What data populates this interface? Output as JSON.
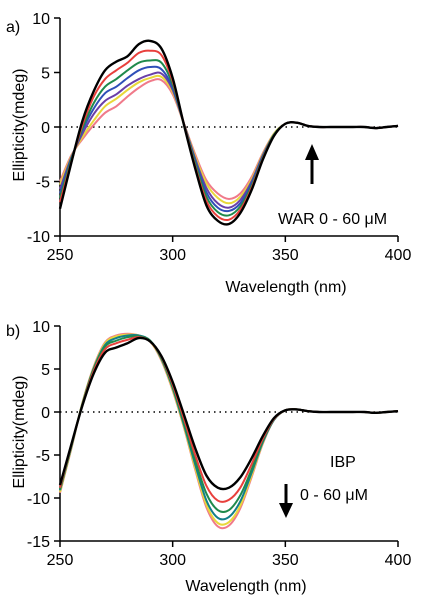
{
  "colors": {
    "black": "#000000",
    "red": "#e8403c",
    "green": "#1f8a4c",
    "teal": "#127f8a",
    "blue": "#2f4fb8",
    "purple": "#6a3fa8",
    "yellow": "#e8d83a",
    "pink": "#f07a8a"
  },
  "chart_data": [
    {
      "type": "line",
      "panel_label": "a)",
      "title": "",
      "xlabel": "Wavelength (nm)",
      "ylabel": "Ellipticity(mdeg)",
      "xlim": [
        250,
        400
      ],
      "ylim": [
        -10,
        10
      ],
      "xticks": [
        250,
        300,
        350,
        400
      ],
      "yticks": [
        10,
        5,
        0,
        -5,
        -10
      ],
      "zero_line": "dotted",
      "annotation": {
        "text": "WAR 0 - 60 μM",
        "arrow": "up"
      },
      "x": [
        250,
        255,
        260,
        265,
        270,
        275,
        280,
        285,
        290,
        295,
        300,
        305,
        310,
        315,
        320,
        325,
        330,
        335,
        340,
        345,
        350,
        355,
        360,
        365,
        370,
        375,
        380,
        385,
        390,
        395,
        400
      ],
      "series": [
        {
          "color": "black",
          "values": [
            -7.5,
            -3.3,
            0.6,
            3.3,
            5.2,
            6.0,
            6.5,
            7.6,
            7.9,
            7.2,
            4.5,
            0.2,
            -3.8,
            -7.2,
            -8.6,
            -8.9,
            -7.9,
            -5.8,
            -3.0,
            -0.8,
            0.3,
            0.4,
            0.1,
            0.0,
            0.0,
            0.0,
            0.0,
            0.0,
            -0.1,
            0.0,
            0.1
          ]
        },
        {
          "color": "red",
          "values": [
            -6.9,
            -3.2,
            0.2,
            2.8,
            4.4,
            5.2,
            5.9,
            6.8,
            7.0,
            6.6,
            4.2,
            0.3,
            -3.6,
            -6.8,
            -8.2,
            -8.5,
            -7.6,
            -5.6,
            -2.9,
            -0.8,
            0.3,
            0.4,
            0.1,
            0.0,
            0.0,
            0.0,
            0.0,
            0.0,
            -0.1,
            0.0,
            0.1
          ]
        },
        {
          "color": "green",
          "values": [
            -6.5,
            -3.0,
            -0.1,
            2.2,
            3.7,
            4.4,
            5.2,
            5.9,
            6.1,
            5.9,
            3.9,
            0.3,
            -3.3,
            -6.4,
            -7.8,
            -8.1,
            -7.3,
            -5.4,
            -2.8,
            -0.7,
            0.3,
            0.4,
            0.1,
            0.0,
            0.0,
            0.0,
            0.0,
            0.0,
            -0.1,
            0.0,
            0.1
          ]
        },
        {
          "color": "blue",
          "values": [
            -6.1,
            -2.9,
            -0.3,
            1.7,
            3.1,
            3.7,
            4.5,
            5.2,
            5.5,
            5.3,
            3.6,
            0.3,
            -3.1,
            -6.0,
            -7.4,
            -7.7,
            -7.0,
            -5.2,
            -2.7,
            -0.7,
            0.3,
            0.4,
            0.1,
            0.0,
            0.0,
            0.0,
            0.0,
            0.0,
            -0.1,
            0.0,
            0.1
          ]
        },
        {
          "color": "purple",
          "values": [
            -5.7,
            -2.8,
            -0.6,
            1.2,
            2.4,
            3.0,
            3.8,
            4.4,
            4.8,
            4.9,
            3.4,
            0.3,
            -2.9,
            -5.6,
            -7.0,
            -7.4,
            -6.7,
            -5.0,
            -2.6,
            -0.7,
            0.3,
            0.4,
            0.1,
            0.0,
            0.0,
            0.0,
            0.0,
            0.0,
            -0.1,
            0.0,
            0.1
          ]
        },
        {
          "color": "yellow",
          "values": [
            -5.3,
            -2.7,
            -0.9,
            0.6,
            1.9,
            2.6,
            3.4,
            4.1,
            4.5,
            4.6,
            3.2,
            0.3,
            -2.7,
            -5.2,
            -6.5,
            -7.0,
            -6.4,
            -4.8,
            -2.5,
            -0.6,
            0.3,
            0.4,
            0.1,
            0.0,
            0.0,
            0.0,
            0.0,
            0.0,
            -0.1,
            0.0,
            0.1
          ]
        },
        {
          "color": "pink",
          "values": [
            -5.0,
            -2.6,
            -1.1,
            0.2,
            1.3,
            1.9,
            2.8,
            3.6,
            4.2,
            4.3,
            3.0,
            0.3,
            -2.5,
            -4.9,
            -6.1,
            -6.6,
            -6.1,
            -4.6,
            -2.4,
            -0.6,
            0.3,
            0.4,
            0.1,
            0.0,
            0.0,
            0.0,
            0.0,
            0.0,
            -0.1,
            0.0,
            0.1
          ]
        }
      ]
    },
    {
      "type": "line",
      "panel_label": "b)",
      "title": "",
      "xlabel": "Wavelength (nm)",
      "ylabel": "Ellipticity(mdeg)",
      "xlim": [
        250,
        400
      ],
      "ylim": [
        -15,
        10
      ],
      "xticks": [
        250,
        300,
        350,
        400
      ],
      "yticks": [
        10,
        5,
        0,
        -5,
        -10,
        -15
      ],
      "zero_line": "dotted",
      "annotation": {
        "text": "IBP",
        "text2": "0 - 60 μM",
        "arrow": "down"
      },
      "x": [
        250,
        255,
        260,
        265,
        270,
        275,
        280,
        285,
        290,
        295,
        300,
        305,
        310,
        315,
        320,
        325,
        330,
        335,
        340,
        345,
        350,
        355,
        360,
        365,
        370,
        375,
        380,
        385,
        390,
        395,
        400
      ],
      "series": [
        {
          "color": "black",
          "values": [
            -8.5,
            -3.8,
            0.8,
            4.5,
            6.9,
            7.5,
            8.0,
            8.6,
            8.2,
            6.5,
            3.5,
            -0.3,
            -4.2,
            -7.4,
            -8.8,
            -8.8,
            -7.6,
            -5.4,
            -2.8,
            -0.7,
            0.2,
            0.3,
            0.1,
            0.0,
            0.0,
            0.0,
            0.0,
            0.0,
            -0.1,
            0.0,
            0.1
          ]
        },
        {
          "color": "red",
          "values": [
            -8.8,
            -3.9,
            0.9,
            4.8,
            7.3,
            8.0,
            8.4,
            8.7,
            8.2,
            6.4,
            3.2,
            -0.8,
            -5.0,
            -8.6,
            -10.3,
            -10.2,
            -8.8,
            -6.1,
            -3.1,
            -0.8,
            0.2,
            0.3,
            0.1,
            0.0,
            0.0,
            0.0,
            0.0,
            0.0,
            -0.1,
            0.0,
            0.1
          ]
        },
        {
          "color": "green",
          "values": [
            -9.0,
            -4.0,
            1.0,
            5.0,
            7.6,
            8.3,
            8.7,
            8.8,
            8.3,
            6.3,
            3.0,
            -1.2,
            -5.6,
            -9.5,
            -11.4,
            -11.4,
            -9.7,
            -6.7,
            -3.3,
            -0.8,
            0.2,
            0.3,
            0.1,
            0.0,
            0.0,
            0.0,
            0.0,
            0.0,
            -0.1,
            0.0,
            0.1
          ]
        },
        {
          "color": "teal",
          "values": [
            -9.1,
            -4.1,
            1.0,
            5.1,
            7.8,
            8.6,
            8.9,
            8.9,
            8.3,
            6.2,
            2.8,
            -1.5,
            -6.1,
            -10.3,
            -12.3,
            -12.2,
            -10.4,
            -7.1,
            -3.5,
            -0.9,
            0.2,
            0.3,
            0.1,
            0.0,
            0.0,
            0.0,
            0.0,
            0.0,
            -0.1,
            0.0,
            0.1
          ]
        },
        {
          "color": "yellow",
          "values": [
            -9.3,
            -4.2,
            1.1,
            5.2,
            8.0,
            8.8,
            9.0,
            8.9,
            8.2,
            6.1,
            2.6,
            -1.7,
            -6.5,
            -10.8,
            -12.9,
            -12.8,
            -10.9,
            -7.4,
            -3.6,
            -0.9,
            0.2,
            0.3,
            0.1,
            0.0,
            0.0,
            0.0,
            0.0,
            0.0,
            -0.1,
            0.0,
            0.1
          ]
        },
        {
          "color": "pink",
          "values": [
            -9.4,
            -4.3,
            1.1,
            5.3,
            8.1,
            8.9,
            9.1,
            8.9,
            8.2,
            6.0,
            2.5,
            -1.8,
            -6.7,
            -11.1,
            -13.3,
            -13.2,
            -11.2,
            -7.6,
            -3.7,
            -0.9,
            0.2,
            0.3,
            0.1,
            0.0,
            0.0,
            0.0,
            0.0,
            0.0,
            -0.1,
            0.0,
            0.1
          ]
        }
      ]
    }
  ]
}
